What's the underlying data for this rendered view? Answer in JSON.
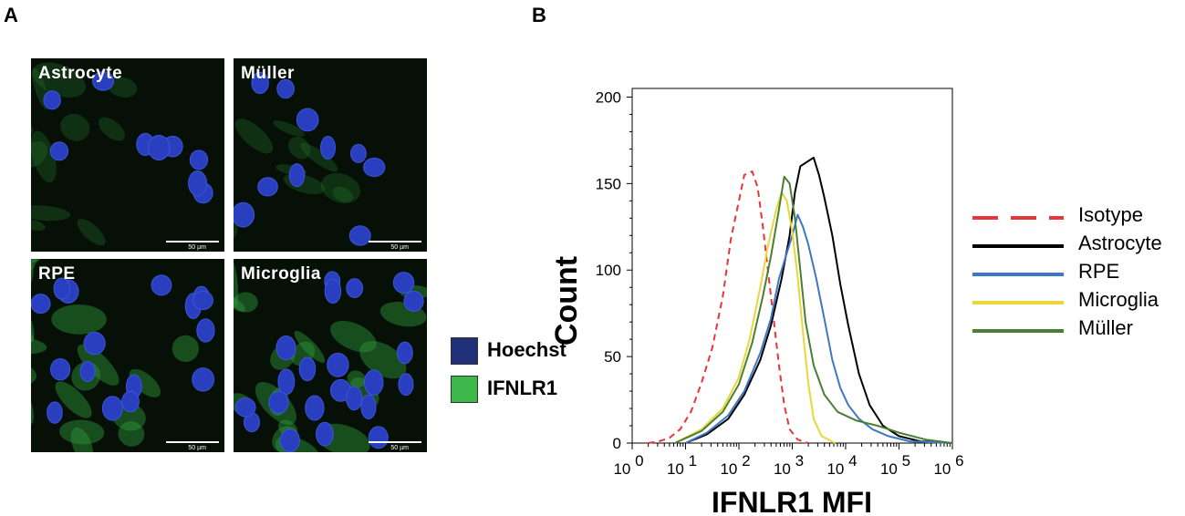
{
  "panelA": {
    "letter": "A",
    "images": [
      {
        "label": "Astrocyte",
        "scale_bar": "50 µm"
      },
      {
        "label": "Müller",
        "scale_bar": "50 µm"
      },
      {
        "label": "RPE",
        "scale_bar": "50 µm"
      },
      {
        "label": "Microglia",
        "scale_bar": "50 µm"
      }
    ],
    "stain_legend": [
      {
        "label": "Hoechst",
        "color": "#1f2f78"
      },
      {
        "label": "IFNLR1",
        "color": "#3cb84a"
      }
    ]
  },
  "panelB": {
    "letter": "B"
  },
  "chart_data": {
    "type": "line",
    "xlabel": "IFNLR1 MFI",
    "ylabel": "Count",
    "ylim": [
      0,
      205
    ],
    "yticks": [
      0,
      50,
      100,
      150,
      200
    ],
    "xscale": "log",
    "xlim": [
      0,
      6
    ],
    "xtick_labels": [
      {
        "base": "10",
        "exp": "0"
      },
      {
        "base": "10",
        "exp": "1"
      },
      {
        "base": "10",
        "exp": "2"
      },
      {
        "base": "10",
        "exp": "3"
      },
      {
        "base": "10",
        "exp": "4"
      },
      {
        "base": "10",
        "exp": "5"
      },
      {
        "base": "10",
        "exp": "6"
      }
    ],
    "legend_position": "right",
    "series": [
      {
        "name": "Isotype",
        "color": "#e8343a",
        "dash": true,
        "points": [
          [
            0.3,
            0
          ],
          [
            0.5,
            1
          ],
          [
            0.7,
            3
          ],
          [
            0.9,
            8
          ],
          [
            1.1,
            18
          ],
          [
            1.3,
            35
          ],
          [
            1.5,
            55
          ],
          [
            1.7,
            85
          ],
          [
            1.85,
            118
          ],
          [
            2.0,
            140
          ],
          [
            2.1,
            155
          ],
          [
            2.25,
            157
          ],
          [
            2.35,
            148
          ],
          [
            2.45,
            125
          ],
          [
            2.55,
            98
          ],
          [
            2.65,
            72
          ],
          [
            2.75,
            45
          ],
          [
            2.85,
            22
          ],
          [
            2.95,
            8
          ],
          [
            3.1,
            2
          ],
          [
            3.3,
            0
          ]
        ]
      },
      {
        "name": "Astrocyte",
        "color": "#000000",
        "dash": false,
        "points": [
          [
            1.0,
            0
          ],
          [
            1.4,
            5
          ],
          [
            1.8,
            14
          ],
          [
            2.1,
            28
          ],
          [
            2.4,
            48
          ],
          [
            2.6,
            68
          ],
          [
            2.8,
            95
          ],
          [
            2.95,
            120
          ],
          [
            3.05,
            145
          ],
          [
            3.15,
            160
          ],
          [
            3.3,
            163
          ],
          [
            3.4,
            165
          ],
          [
            3.5,
            155
          ],
          [
            3.6,
            142
          ],
          [
            3.75,
            120
          ],
          [
            3.9,
            92
          ],
          [
            4.05,
            68
          ],
          [
            4.25,
            40
          ],
          [
            4.45,
            22
          ],
          [
            4.7,
            10
          ],
          [
            5.0,
            4
          ],
          [
            5.4,
            1
          ],
          [
            6.0,
            0
          ]
        ]
      },
      {
        "name": "RPE",
        "color": "#3f77c4",
        "dash": false,
        "points": [
          [
            1.0,
            0
          ],
          [
            1.4,
            6
          ],
          [
            1.8,
            16
          ],
          [
            2.1,
            30
          ],
          [
            2.4,
            52
          ],
          [
            2.6,
            72
          ],
          [
            2.75,
            95
          ],
          [
            2.9,
            110
          ],
          [
            3.0,
            120
          ],
          [
            3.1,
            132
          ],
          [
            3.2,
            125
          ],
          [
            3.3,
            115
          ],
          [
            3.45,
            95
          ],
          [
            3.6,
            72
          ],
          [
            3.75,
            48
          ],
          [
            3.9,
            32
          ],
          [
            4.05,
            22
          ],
          [
            4.25,
            14
          ],
          [
            4.5,
            8
          ],
          [
            4.8,
            4
          ],
          [
            5.2,
            1
          ],
          [
            6.0,
            0
          ]
        ]
      },
      {
        "name": "Microglia",
        "color": "#e9d639",
        "dash": false,
        "points": [
          [
            0.8,
            0
          ],
          [
            1.3,
            8
          ],
          [
            1.7,
            20
          ],
          [
            2.0,
            38
          ],
          [
            2.2,
            60
          ],
          [
            2.4,
            90
          ],
          [
            2.55,
            115
          ],
          [
            2.7,
            135
          ],
          [
            2.8,
            145
          ],
          [
            2.9,
            140
          ],
          [
            3.0,
            122
          ],
          [
            3.1,
            96
          ],
          [
            3.2,
            64
          ],
          [
            3.3,
            35
          ],
          [
            3.4,
            14
          ],
          [
            3.55,
            4
          ],
          [
            3.8,
            0
          ]
        ]
      },
      {
        "name": "Müller",
        "color": "#4a7f33",
        "dash": false,
        "points": [
          [
            0.8,
            0
          ],
          [
            1.3,
            7
          ],
          [
            1.7,
            18
          ],
          [
            2.0,
            34
          ],
          [
            2.25,
            58
          ],
          [
            2.45,
            85
          ],
          [
            2.6,
            108
          ],
          [
            2.75,
            135
          ],
          [
            2.85,
            154
          ],
          [
            2.95,
            150
          ],
          [
            3.05,
            130
          ],
          [
            3.15,
            100
          ],
          [
            3.25,
            70
          ],
          [
            3.4,
            45
          ],
          [
            3.6,
            28
          ],
          [
            3.85,
            18
          ],
          [
            4.2,
            13
          ],
          [
            4.6,
            10
          ],
          [
            5.0,
            6
          ],
          [
            5.5,
            2
          ],
          [
            6.0,
            0
          ]
        ]
      }
    ]
  }
}
